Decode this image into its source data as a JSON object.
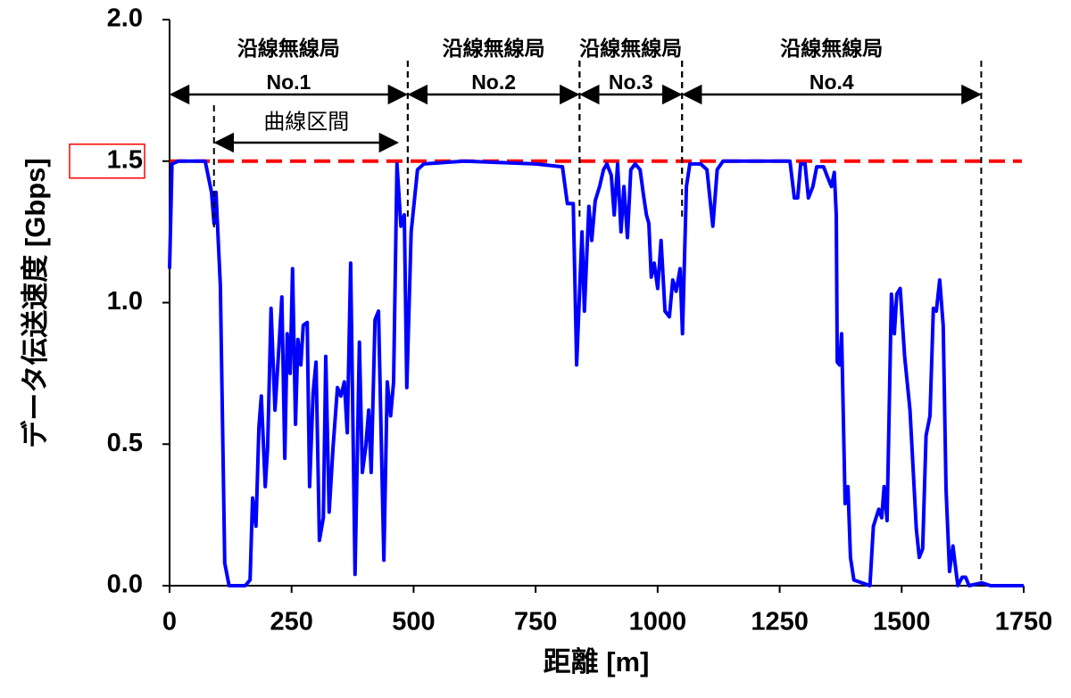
{
  "chart_data": {
    "type": "line",
    "xlabel": "距離 [m]",
    "ylabel": "データ伝送速度 [Gbps]",
    "xlim": [
      0,
      1750
    ],
    "xticks": [
      0,
      250,
      500,
      750,
      1000,
      1250,
      1500,
      1750
    ],
    "ylim": [
      0,
      2
    ],
    "yticks": [
      {
        "value": 0,
        "label": "0.0"
      },
      0.5,
      {
        "value": 1,
        "label": "1.0"
      },
      1.5,
      {
        "value": 2,
        "label": "2.0"
      }
    ],
    "series": [
      {
        "color": "#0000ff",
        "x": [
          0,
          5,
          18,
          73,
          86,
          91,
          95,
          104,
          113,
          122,
          155,
          165,
          170,
          177,
          183,
          188,
          196,
          201,
          208,
          216,
          223,
          230,
          236,
          241,
          247,
          252,
          258,
          263,
          269,
          274,
          282,
          287,
          294,
          300,
          307,
          315,
          320,
          327,
          335,
          344,
          351,
          358,
          364,
          371,
          380,
          389,
          395,
          402,
          408,
          413,
          421,
          428,
          439,
          446,
          453,
          459,
          466,
          474,
          481,
          486,
          495,
          508,
          521,
          603,
          750,
          805,
          815,
          827,
          834,
          845,
          850,
          859,
          865,
          872,
          881,
          889,
          896,
          905,
          911,
          918,
          925,
          931,
          938,
          945,
          954,
          964,
          971,
          977,
          982,
          987,
          993,
          1000,
          1007,
          1015,
          1024,
          1031,
          1038,
          1046,
          1051,
          1059,
          1066,
          1088,
          1101,
          1113,
          1122,
          1134,
          1207,
          1271,
          1280,
          1287,
          1293,
          1302,
          1309,
          1318,
          1326,
          1340,
          1349,
          1356,
          1362,
          1366,
          1368,
          1373,
          1377,
          1384,
          1390,
          1395,
          1402,
          1435,
          1442,
          1453,
          1459,
          1464,
          1470,
          1479,
          1485,
          1490,
          1497,
          1506,
          1517,
          1530,
          1536,
          1543,
          1550,
          1558,
          1565,
          1571,
          1578,
          1585,
          1591,
          1598,
          1605,
          1615,
          1624,
          1631,
          1638,
          1664,
          1682,
          1750
        ],
        "y": [
          1.12,
          1.49,
          1.5,
          1.5,
          1.39,
          1.28,
          1.39,
          1.06,
          0.08,
          0,
          0,
          0.02,
          0.31,
          0.21,
          0.56,
          0.67,
          0.35,
          0.49,
          0.98,
          0.62,
          0.81,
          1.02,
          0.45,
          0.89,
          0.75,
          1.12,
          0.57,
          0.87,
          0.78,
          0.92,
          0.93,
          0.35,
          0.68,
          0.79,
          0.16,
          0.24,
          0.81,
          0.26,
          0.49,
          0.7,
          0.67,
          0.72,
          0.54,
          1.14,
          0.04,
          0.86,
          0.4,
          0.49,
          0.62,
          0.4,
          0.94,
          0.97,
          0.09,
          0.72,
          0.6,
          0.72,
          1.49,
          1.27,
          1.31,
          0.7,
          1.25,
          1.47,
          1.49,
          1.5,
          1.49,
          1.48,
          1.35,
          1.35,
          0.78,
          1.25,
          0.97,
          1.34,
          1.22,
          1.36,
          1.41,
          1.47,
          1.49,
          1.45,
          1.31,
          1.49,
          1.25,
          1.41,
          1.23,
          1.47,
          1.49,
          1.47,
          1.38,
          1.31,
          1.28,
          1.09,
          1.14,
          1.05,
          1.22,
          0.97,
          0.95,
          1.08,
          1.04,
          1.12,
          0.89,
          1.41,
          1.49,
          1.49,
          1.47,
          1.27,
          1.47,
          1.5,
          1.5,
          1.5,
          1.37,
          1.37,
          1.49,
          1.49,
          1.37,
          1.41,
          1.48,
          1.48,
          1.44,
          1.41,
          1.46,
          1.31,
          0.79,
          0.78,
          0.89,
          0.29,
          0.35,
          0.1,
          0.02,
          0,
          0.21,
          0.27,
          0.24,
          0.35,
          0.23,
          1.03,
          0.89,
          1.03,
          1.05,
          0.81,
          0.62,
          0.2,
          0.1,
          0.13,
          0.53,
          0.6,
          0.98,
          0.97,
          1.08,
          0.92,
          0.34,
          0.05,
          0.14,
          0,
          0.03,
          0.03,
          0,
          0.01,
          0,
          0
        ]
      }
    ],
    "reference_line": {
      "value": 1.5,
      "color": "#ff0000"
    },
    "stations": [
      {
        "label": "沿線無線局",
        "number": "No.1",
        "x0": 0,
        "x1": 488
      },
      {
        "label": "沿線無線局",
        "number": "No.2",
        "x0": 488,
        "x1": 840
      },
      {
        "label": "沿線無線局",
        "number": "No.3",
        "x0": 840,
        "x1": 1050
      },
      {
        "label": "沿線無線局",
        "number": "No.4",
        "x0": 1050,
        "x1": 1663
      }
    ],
    "curve_section": {
      "label": "曲線区間",
      "x0": 91,
      "x1": 488
    }
  }
}
